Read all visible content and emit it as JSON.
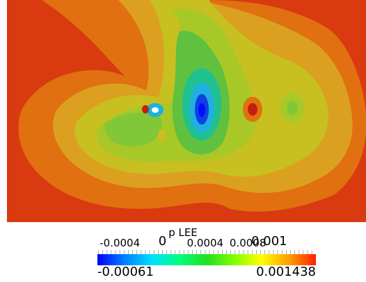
{
  "colorbar": {
    "title": "p LEE",
    "range_min": "-0.00061",
    "range_max": "0.001438",
    "min_value": -0.00061,
    "max_value": 0.001438,
    "ticks": [
      {
        "label": "-0.0004",
        "value": -0.0004,
        "big": false
      },
      {
        "label": "0",
        "value": 0.0,
        "big": true
      },
      {
        "label": "0.0004",
        "value": 0.0004,
        "big": false
      },
      {
        "label": "0.0008",
        "value": 0.0008,
        "big": false
      },
      {
        "label": "0.001",
        "value": 0.001,
        "big": true
      }
    ],
    "colormap": [
      "#0000ff",
      "#0080ff",
      "#00e0ff",
      "#00ff80",
      "#20e020",
      "#80ff00",
      "#ffff00",
      "#ffa000",
      "#ff2000"
    ]
  },
  "field_colors": {
    "background": "#d93a10",
    "orange": "#e07010",
    "yellow_orange": "#dca020",
    "yellow": "#c8c020",
    "yellow_green": "#a8c828",
    "green": "#60c040",
    "cyan_green": "#20c090",
    "cyan": "#20b0e0",
    "blue": "#1040e0",
    "deep_blue": "#0010ff",
    "red_spot": "#c02010"
  }
}
